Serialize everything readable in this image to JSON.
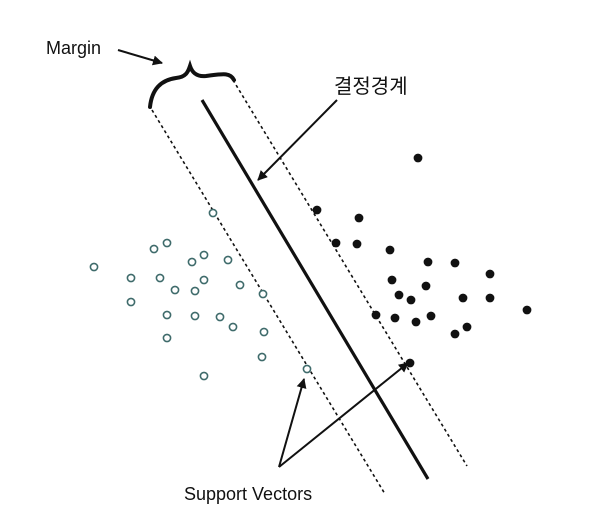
{
  "labels": {
    "margin": "Margin",
    "boundary": "결정경계",
    "support_vectors": "Support Vectors"
  },
  "colors": {
    "ink": "#111111",
    "hollow_fill": "#ffffff",
    "hollow_stroke": "#3f6b6b"
  },
  "points": {
    "hollow_count": 24,
    "filled_count": 23
  }
}
